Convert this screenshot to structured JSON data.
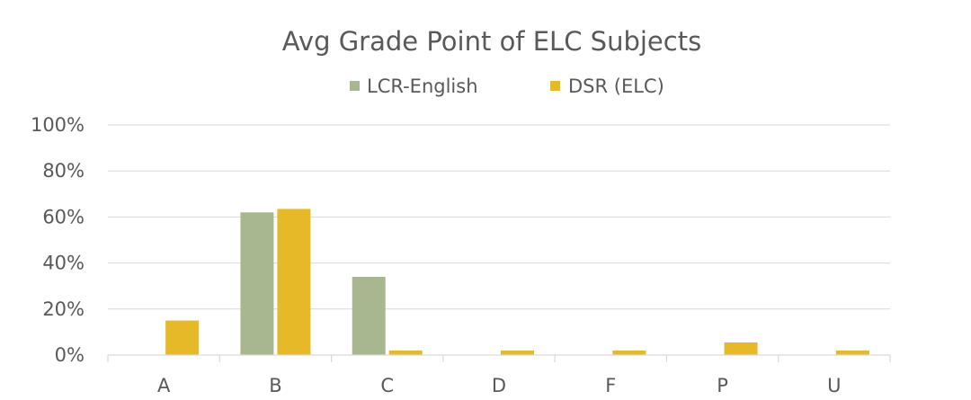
{
  "chart_data": {
    "type": "bar",
    "title": "Avg Grade Point of ELC Subjects",
    "categories": [
      "A",
      "B",
      "C",
      "D",
      "F",
      "P",
      "U"
    ],
    "series": [
      {
        "name": "LCR-English",
        "color": "#a9b791",
        "values": [
          0,
          62,
          34,
          0,
          0,
          0,
          0
        ]
      },
      {
        "name": "DSR (ELC)",
        "color": "#e6b928",
        "values": [
          15,
          63.5,
          2,
          2,
          2,
          5.5,
          2
        ]
      }
    ],
    "ylim": [
      0,
      100
    ],
    "yticks": [
      0,
      20,
      40,
      60,
      80,
      100
    ],
    "ytick_labels": [
      "0%",
      "20%",
      "40%",
      "60%",
      "80%",
      "100%"
    ],
    "legend_position": "top",
    "grid": true
  }
}
